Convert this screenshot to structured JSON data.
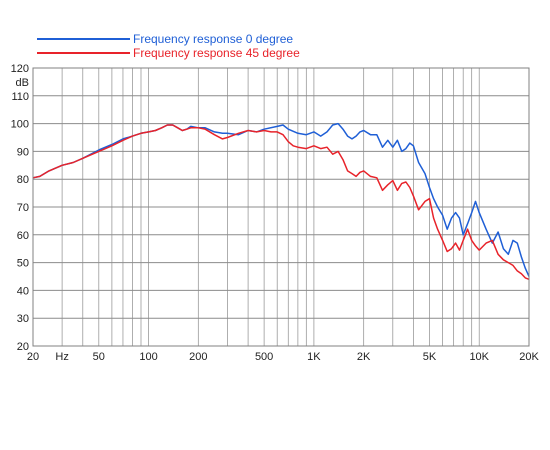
{
  "chart_data": {
    "type": "line",
    "title": "",
    "xlabel": "",
    "ylabel": "dB",
    "x_scale": "log",
    "xlim": [
      20,
      20000
    ],
    "ylim": [
      20,
      120
    ],
    "grid": true,
    "legend_position": "top-left",
    "x_tick_labels": [
      {
        "value": 20,
        "label": "20"
      },
      {
        "value": 30,
        "label": "Hz"
      },
      {
        "value": 50,
        "label": "50"
      },
      {
        "value": 100,
        "label": "100"
      },
      {
        "value": 200,
        "label": "200"
      },
      {
        "value": 500,
        "label": "500"
      },
      {
        "value": 1000,
        "label": "1K"
      },
      {
        "value": 2000,
        "label": "2K"
      },
      {
        "value": 5000,
        "label": "5K"
      },
      {
        "value": 10000,
        "label": "10K"
      },
      {
        "value": 20000,
        "label": "20K"
      }
    ],
    "y_ticks": [
      20,
      30,
      40,
      50,
      60,
      70,
      80,
      90,
      100,
      110,
      120
    ],
    "series": [
      {
        "name": "Frequency response 0 degree",
        "color": "#1f5fd6",
        "points": [
          [
            20,
            80.5
          ],
          [
            22,
            81
          ],
          [
            25,
            83
          ],
          [
            30,
            85
          ],
          [
            35,
            86
          ],
          [
            40,
            87.5
          ],
          [
            50,
            90.5
          ],
          [
            60,
            92.5
          ],
          [
            70,
            94.5
          ],
          [
            80,
            95.5
          ],
          [
            90,
            96.5
          ],
          [
            100,
            97
          ],
          [
            110,
            97.5
          ],
          [
            120,
            98.5
          ],
          [
            130,
            99.5
          ],
          [
            140,
            99.5
          ],
          [
            150,
            98.5
          ],
          [
            160,
            97.5
          ],
          [
            170,
            98
          ],
          [
            180,
            99
          ],
          [
            200,
            98.5
          ],
          [
            220,
            98.5
          ],
          [
            250,
            97
          ],
          [
            280,
            96.5
          ],
          [
            300,
            96.5
          ],
          [
            350,
            96
          ],
          [
            400,
            97.5
          ],
          [
            450,
            97
          ],
          [
            500,
            98
          ],
          [
            600,
            99
          ],
          [
            650,
            99.5
          ],
          [
            700,
            98
          ],
          [
            800,
            96.5
          ],
          [
            900,
            96
          ],
          [
            1000,
            97
          ],
          [
            1100,
            95.5
          ],
          [
            1200,
            97
          ],
          [
            1300,
            99.5
          ],
          [
            1400,
            100
          ],
          [
            1500,
            98
          ],
          [
            1600,
            95.5
          ],
          [
            1700,
            94.5
          ],
          [
            1800,
            95.5
          ],
          [
            1900,
            97
          ],
          [
            2000,
            97.5
          ],
          [
            2200,
            96
          ],
          [
            2400,
            96
          ],
          [
            2600,
            91.5
          ],
          [
            2800,
            94
          ],
          [
            3000,
            91.5
          ],
          [
            3200,
            94
          ],
          [
            3400,
            90
          ],
          [
            3600,
            91
          ],
          [
            3800,
            93
          ],
          [
            4000,
            92
          ],
          [
            4300,
            86
          ],
          [
            4700,
            82
          ],
          [
            5000,
            77
          ],
          [
            5300,
            73
          ],
          [
            5600,
            70
          ],
          [
            6000,
            67
          ],
          [
            6400,
            62
          ],
          [
            6800,
            66
          ],
          [
            7200,
            68
          ],
          [
            7600,
            66
          ],
          [
            8000,
            60
          ],
          [
            8500,
            64
          ],
          [
            9000,
            68
          ],
          [
            9500,
            72
          ],
          [
            10000,
            68
          ],
          [
            11000,
            62
          ],
          [
            12000,
            57
          ],
          [
            13000,
            61
          ],
          [
            14000,
            55
          ],
          [
            15000,
            53
          ],
          [
            16000,
            58
          ],
          [
            17000,
            57
          ],
          [
            18000,
            52
          ],
          [
            19000,
            48
          ],
          [
            20000,
            45
          ]
        ]
      },
      {
        "name": "Frequency response 45 degree",
        "color": "#e8232a",
        "points": [
          [
            20,
            80.5
          ],
          [
            22,
            81
          ],
          [
            25,
            83
          ],
          [
            30,
            85
          ],
          [
            35,
            86
          ],
          [
            40,
            87.5
          ],
          [
            50,
            90
          ],
          [
            60,
            92
          ],
          [
            70,
            94
          ],
          [
            80,
            95.5
          ],
          [
            90,
            96.5
          ],
          [
            100,
            97
          ],
          [
            110,
            97.5
          ],
          [
            120,
            98.5
          ],
          [
            130,
            99.5
          ],
          [
            140,
            99.5
          ],
          [
            150,
            98.5
          ],
          [
            160,
            97.5
          ],
          [
            170,
            98
          ],
          [
            180,
            98.5
          ],
          [
            200,
            98.5
          ],
          [
            220,
            98
          ],
          [
            250,
            96
          ],
          [
            280,
            94.5
          ],
          [
            300,
            95
          ],
          [
            350,
            96.5
          ],
          [
            400,
            97.5
          ],
          [
            450,
            97
          ],
          [
            500,
            97.5
          ],
          [
            550,
            97
          ],
          [
            600,
            97
          ],
          [
            650,
            96
          ],
          [
            700,
            93.5
          ],
          [
            750,
            92
          ],
          [
            800,
            91.5
          ],
          [
            900,
            91
          ],
          [
            1000,
            92
          ],
          [
            1100,
            91
          ],
          [
            1200,
            91.5
          ],
          [
            1300,
            89
          ],
          [
            1400,
            90
          ],
          [
            1500,
            87
          ],
          [
            1600,
            83
          ],
          [
            1700,
            82
          ],
          [
            1800,
            81
          ],
          [
            1900,
            82.5
          ],
          [
            2000,
            83
          ],
          [
            2200,
            81
          ],
          [
            2400,
            80.5
          ],
          [
            2600,
            76
          ],
          [
            2800,
            78
          ],
          [
            3000,
            79.5
          ],
          [
            3200,
            76
          ],
          [
            3400,
            78.5
          ],
          [
            3600,
            79
          ],
          [
            3800,
            77
          ],
          [
            4000,
            74
          ],
          [
            4300,
            69
          ],
          [
            4700,
            72
          ],
          [
            5000,
            73
          ],
          [
            5300,
            66
          ],
          [
            5600,
            62
          ],
          [
            6000,
            58
          ],
          [
            6400,
            54
          ],
          [
            6800,
            55
          ],
          [
            7200,
            57
          ],
          [
            7600,
            54.5
          ],
          [
            8000,
            58
          ],
          [
            8500,
            62
          ],
          [
            9000,
            58
          ],
          [
            9500,
            56
          ],
          [
            10000,
            54.5
          ],
          [
            11000,
            57
          ],
          [
            12000,
            58
          ],
          [
            13000,
            53
          ],
          [
            14000,
            51
          ],
          [
            15000,
            50
          ],
          [
            16000,
            49
          ],
          [
            17000,
            47
          ],
          [
            18000,
            46
          ],
          [
            19000,
            44.5
          ],
          [
            20000,
            44
          ]
        ]
      }
    ]
  }
}
